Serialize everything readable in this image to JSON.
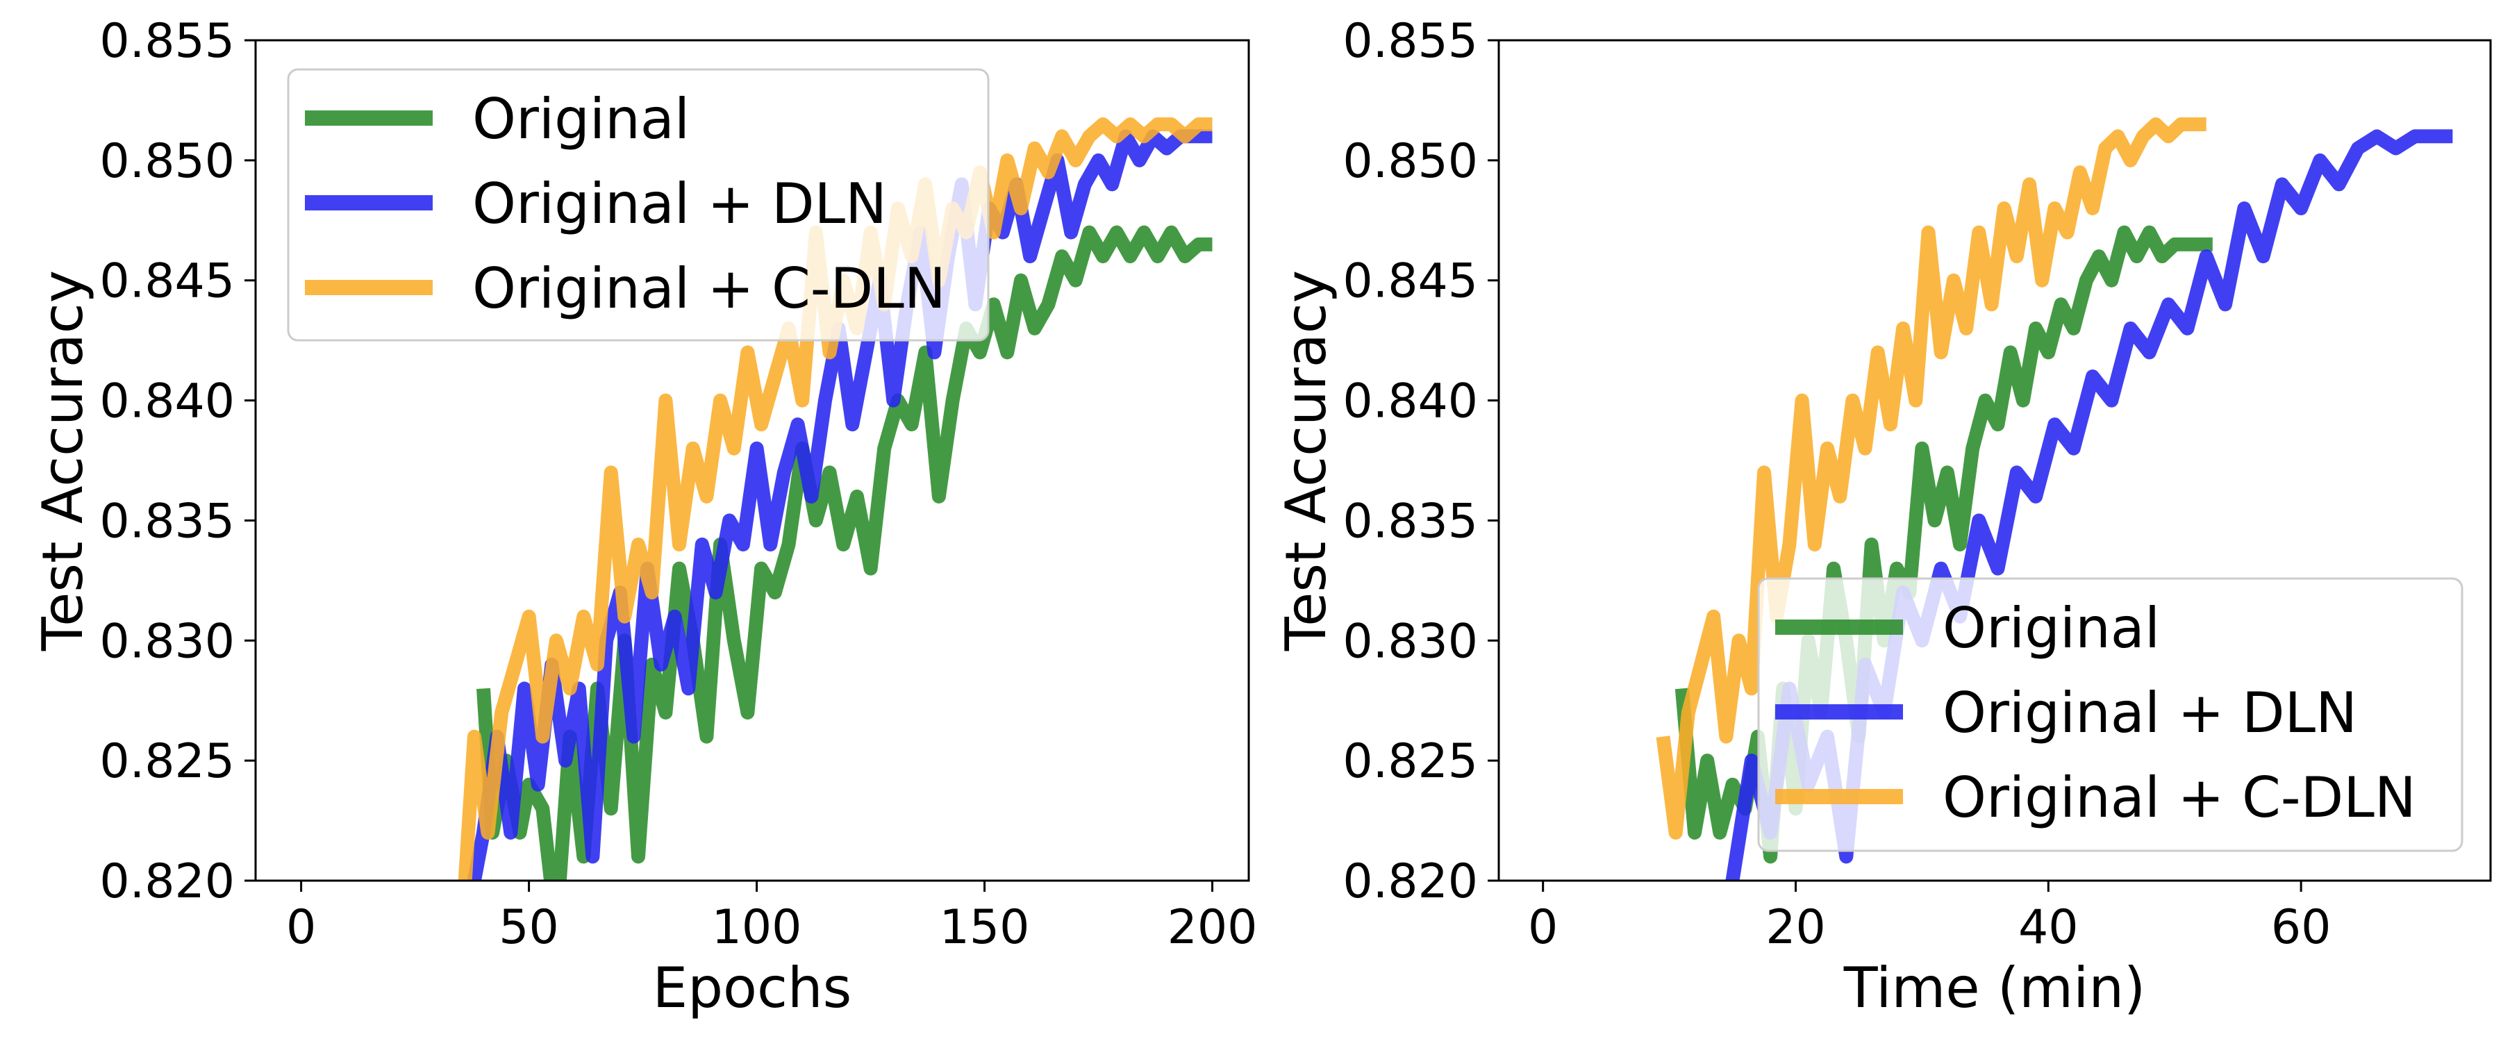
{
  "chart_data": [
    {
      "type": "line",
      "xlabel": "Epochs",
      "ylabel": "Test Accuracy",
      "xlim": [
        -10,
        208
      ],
      "ylim": [
        0.82,
        0.855
      ],
      "xticks": [
        0,
        50,
        100,
        150,
        200
      ],
      "yticks": [
        0.82,
        0.825,
        0.83,
        0.835,
        0.84,
        0.845,
        0.85,
        0.855
      ],
      "legend_position": "top-left",
      "series": [
        {
          "name": "Original",
          "color": "#2a8c2a",
          "x": [
            40,
            42,
            45,
            48,
            50,
            53,
            56,
            59,
            62,
            65,
            68,
            71,
            74,
            77,
            80,
            83,
            86,
            89,
            92,
            95,
            98,
            101,
            104,
            107,
            110,
            113,
            116,
            119,
            122,
            125,
            128,
            131,
            134,
            137,
            140,
            143,
            146,
            149,
            152,
            155,
            158,
            161,
            164,
            167,
            170,
            173,
            176,
            179,
            182,
            185,
            188,
            191,
            194,
            197,
            200
          ],
          "values": [
            0.828,
            0.822,
            0.825,
            0.822,
            0.824,
            0.823,
            0.818,
            0.826,
            0.821,
            0.828,
            0.823,
            0.83,
            0.821,
            0.829,
            0.827,
            0.833,
            0.83,
            0.826,
            0.834,
            0.83,
            0.827,
            0.833,
            0.832,
            0.834,
            0.838,
            0.835,
            0.837,
            0.834,
            0.836,
            0.833,
            0.838,
            0.84,
            0.839,
            0.842,
            0.836,
            0.84,
            0.843,
            0.842,
            0.844,
            0.842,
            0.845,
            0.843,
            0.844,
            0.846,
            0.845,
            0.847,
            0.846,
            0.847,
            0.846,
            0.847,
            0.846,
            0.847,
            0.846,
            0.8465,
            0.8465
          ]
        },
        {
          "name": "Original + DLN",
          "color": "#2525f0",
          "x": [
            38,
            40,
            43,
            46,
            49,
            52,
            55,
            58,
            61,
            64,
            67,
            70,
            73,
            76,
            79,
            82,
            85,
            88,
            91,
            94,
            97,
            100,
            103,
            106,
            109,
            112,
            115,
            118,
            121,
            124,
            127,
            130,
            133,
            136,
            139,
            142,
            145,
            148,
            151,
            154,
            157,
            160,
            163,
            166,
            169,
            172,
            175,
            178,
            181,
            184,
            187,
            190,
            193,
            196,
            200
          ],
          "values": [
            0.82,
            0.822,
            0.826,
            0.822,
            0.828,
            0.824,
            0.829,
            0.825,
            0.828,
            0.821,
            0.83,
            0.832,
            0.826,
            0.833,
            0.829,
            0.831,
            0.828,
            0.834,
            0.832,
            0.835,
            0.834,
            0.838,
            0.834,
            0.837,
            0.839,
            0.836,
            0.84,
            0.843,
            0.839,
            0.842,
            0.845,
            0.84,
            0.844,
            0.847,
            0.842,
            0.846,
            0.849,
            0.844,
            0.848,
            0.847,
            0.849,
            0.846,
            0.848,
            0.85,
            0.847,
            0.849,
            0.85,
            0.849,
            0.851,
            0.85,
            0.851,
            0.8505,
            0.851,
            0.851,
            0.851
          ]
        },
        {
          "name": "Original + C-DLN",
          "color": "#fbad2a",
          "x": [
            36,
            38,
            41,
            44,
            47,
            50,
            53,
            56,
            59,
            62,
            65,
            68,
            71,
            74,
            77,
            80,
            83,
            86,
            89,
            92,
            95,
            98,
            101,
            104,
            107,
            110,
            113,
            116,
            119,
            122,
            125,
            128,
            131,
            134,
            137,
            140,
            143,
            146,
            149,
            152,
            155,
            158,
            161,
            164,
            167,
            170,
            173,
            176,
            179,
            182,
            185,
            188,
            191,
            194,
            197,
            200
          ],
          "values": [
            0.82,
            0.826,
            0.822,
            0.827,
            0.829,
            0.831,
            0.826,
            0.83,
            0.828,
            0.831,
            0.829,
            0.837,
            0.831,
            0.834,
            0.832,
            0.84,
            0.834,
            0.838,
            0.836,
            0.84,
            0.838,
            0.842,
            0.839,
            0.841,
            0.843,
            0.84,
            0.847,
            0.842,
            0.845,
            0.843,
            0.847,
            0.844,
            0.848,
            0.846,
            0.849,
            0.845,
            0.848,
            0.847,
            0.8495,
            0.847,
            0.85,
            0.848,
            0.8505,
            0.8495,
            0.851,
            0.85,
            0.851,
            0.8515,
            0.851,
            0.8515,
            0.851,
            0.8515,
            0.8515,
            0.851,
            0.8515,
            0.8515
          ]
        }
      ]
    },
    {
      "type": "line",
      "xlabel": "Time (min)",
      "ylabel": "Test Accuracy",
      "xlim": [
        -3.5,
        75.0
      ],
      "ylim": [
        0.82,
        0.855
      ],
      "xticks": [
        0,
        20,
        40,
        60
      ],
      "yticks": [
        0.82,
        0.825,
        0.83,
        0.835,
        0.84,
        0.845,
        0.85,
        0.855
      ],
      "legend_position": "bottom-right",
      "series": [
        {
          "name": "Original",
          "color": "#2a8c2a",
          "x": [
            11,
            12,
            13,
            14,
            15,
            16,
            17,
            18,
            19,
            20,
            21,
            22,
            23,
            24,
            25,
            26,
            27,
            28,
            29,
            30,
            31,
            32,
            33,
            34,
            35,
            36,
            37,
            38,
            39,
            40,
            41,
            42,
            43,
            44,
            45,
            46,
            47,
            48,
            49,
            50,
            51,
            52,
            53
          ],
          "values": [
            0.828,
            0.822,
            0.825,
            0.822,
            0.824,
            0.823,
            0.826,
            0.821,
            0.828,
            0.823,
            0.83,
            0.827,
            0.833,
            0.83,
            0.826,
            0.834,
            0.83,
            0.833,
            0.832,
            0.838,
            0.835,
            0.837,
            0.834,
            0.838,
            0.84,
            0.839,
            0.842,
            0.84,
            0.843,
            0.842,
            0.844,
            0.843,
            0.845,
            0.846,
            0.845,
            0.847,
            0.846,
            0.847,
            0.846,
            0.8465,
            0.8465,
            0.8465,
            0.8465
          ]
        },
        {
          "name": "Original + DLN",
          "color": "#2525f0",
          "x": [
            15,
            16.5,
            18,
            19.5,
            21,
            22.5,
            24,
            25.5,
            27,
            28.5,
            30,
            31.5,
            33,
            34.5,
            36,
            37.5,
            39,
            40.5,
            42,
            43.5,
            45,
            46.5,
            48,
            49.5,
            51,
            52.5,
            54,
            55.5,
            57,
            58.5,
            60,
            61.5,
            63,
            64.5,
            66,
            67.5,
            69,
            70.5,
            72
          ],
          "values": [
            0.82,
            0.825,
            0.822,
            0.828,
            0.824,
            0.826,
            0.821,
            0.829,
            0.827,
            0.832,
            0.83,
            0.833,
            0.831,
            0.835,
            0.833,
            0.837,
            0.836,
            0.839,
            0.838,
            0.841,
            0.84,
            0.843,
            0.842,
            0.844,
            0.843,
            0.846,
            0.844,
            0.848,
            0.846,
            0.849,
            0.848,
            0.85,
            0.849,
            0.8505,
            0.851,
            0.8505,
            0.851,
            0.851,
            0.851
          ]
        },
        {
          "name": "Original + C-DLN",
          "color": "#fbad2a",
          "x": [
            9.5,
            10.5,
            11.5,
            12.5,
            13.5,
            14.5,
            15.5,
            16.5,
            17.5,
            18.5,
            19.5,
            20.5,
            21.5,
            22.5,
            23.5,
            24.5,
            25.5,
            26.5,
            27.5,
            28.5,
            29.5,
            30.5,
            31.5,
            32.5,
            33.5,
            34.5,
            35.5,
            36.5,
            37.5,
            38.5,
            39.5,
            40.5,
            41.5,
            42.5,
            43.5,
            44.5,
            45.5,
            46.5,
            47.5,
            48.5,
            49.5,
            50.5,
            51.5,
            52.5
          ],
          "values": [
            0.826,
            0.822,
            0.827,
            0.829,
            0.831,
            0.826,
            0.83,
            0.828,
            0.837,
            0.831,
            0.834,
            0.84,
            0.834,
            0.838,
            0.836,
            0.84,
            0.838,
            0.842,
            0.839,
            0.843,
            0.84,
            0.847,
            0.842,
            0.845,
            0.843,
            0.847,
            0.844,
            0.848,
            0.846,
            0.849,
            0.845,
            0.848,
            0.847,
            0.8495,
            0.848,
            0.8505,
            0.851,
            0.85,
            0.851,
            0.8515,
            0.851,
            0.8515,
            0.8515,
            0.8515
          ]
        }
      ]
    }
  ]
}
